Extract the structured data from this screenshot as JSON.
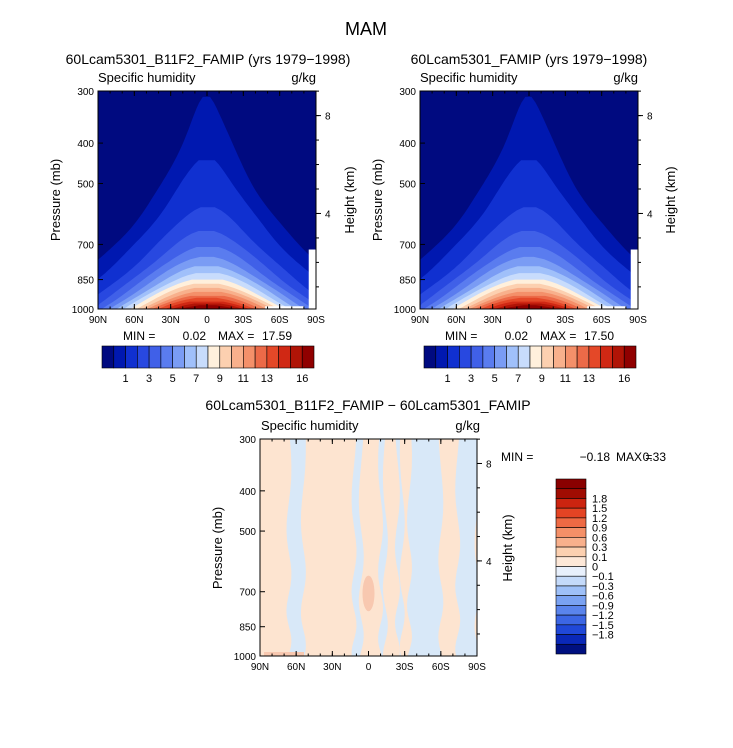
{
  "page_title": "MAM",
  "colors": {
    "abs_scale": [
      "#000a80",
      "#0018b0",
      "#1030d0",
      "#2848e0",
      "#4060e8",
      "#5a7cef",
      "#7a9cf4",
      "#a0c0fa",
      "#c8dcfc",
      "#fff0dc",
      "#fcd0b0",
      "#f8b08c",
      "#f4906a",
      "#ec6a48",
      "#e44828",
      "#d02814",
      "#b01406",
      "#900000"
    ],
    "diff_scale": [
      "#001080",
      "#0a28b8",
      "#2048d8",
      "#3c66e4",
      "#5a84ec",
      "#7aa2f2",
      "#9ec0f8",
      "#c4dafa",
      "#e8f0fc",
      "#fde8d8",
      "#fcd0b0",
      "#f8b08c",
      "#f49068",
      "#ee6a44",
      "#e44424",
      "#cc2410",
      "#a00c02",
      "#8a0000"
    ],
    "diff_pos": "#fde4d0",
    "diff_neg": "#d8e8f8",
    "diff_pos2": "#f8c8b0"
  },
  "chart_data": [
    {
      "type": "heatmap",
      "title": "60Lcam5301_B11F2_FAMIP (yrs 1979−1998)",
      "left_label": "Specific humidity",
      "right_label": "g/kg",
      "ylabel": "Pressure (mb)",
      "y2label": "Height (km)",
      "x_ticks": [
        "90N",
        "60N",
        "30N",
        "0",
        "30S",
        "60S",
        "90S"
      ],
      "x_values": [
        90,
        60,
        30,
        0,
        -30,
        -60,
        -90
      ],
      "y_ticks": [
        "300",
        "400",
        "500",
        "700",
        "850",
        "1000"
      ],
      "y_values": [
        300,
        400,
        500,
        700,
        850,
        1000
      ],
      "ylim": [
        300,
        1000
      ],
      "y2_ticks": [
        "8",
        "4"
      ],
      "y2_values": [
        8,
        4
      ],
      "min_label": "MIN =",
      "min_value": "0.02",
      "max_label": "MAX =",
      "max_value": "17.59",
      "colorbar_labels": [
        "1",
        "3",
        "5",
        "7",
        "9",
        "11",
        "13",
        "16"
      ],
      "levels": [
        0.5,
        1,
        2,
        3,
        4,
        5,
        6,
        7,
        8,
        9,
        10,
        11,
        12,
        13,
        14,
        15,
        16
      ],
      "peak": 17.59
    },
    {
      "type": "heatmap",
      "title": "60Lcam5301_FAMIP (yrs 1979−1998)",
      "left_label": "Specific humidity",
      "right_label": "g/kg",
      "ylabel": "Pressure (mb)",
      "y2label": "Height (km)",
      "x_ticks": [
        "90N",
        "60N",
        "30N",
        "0",
        "30S",
        "60S",
        "90S"
      ],
      "x_values": [
        90,
        60,
        30,
        0,
        -30,
        -60,
        -90
      ],
      "y_ticks": [
        "300",
        "400",
        "500",
        "700",
        "850",
        "1000"
      ],
      "y_values": [
        300,
        400,
        500,
        700,
        850,
        1000
      ],
      "ylim": [
        300,
        1000
      ],
      "y2_ticks": [
        "8",
        "4"
      ],
      "y2_values": [
        8,
        4
      ],
      "min_label": "MIN =",
      "min_value": "0.02",
      "max_label": "MAX =",
      "max_value": "17.50",
      "colorbar_labels": [
        "1",
        "3",
        "5",
        "7",
        "9",
        "11",
        "13",
        "16"
      ],
      "levels": [
        0.5,
        1,
        2,
        3,
        4,
        5,
        6,
        7,
        8,
        9,
        10,
        11,
        12,
        13,
        14,
        15,
        16
      ],
      "peak": 17.5
    },
    {
      "type": "heatmap",
      "title": "60Lcam5301_B11F2_FAMIP − 60Lcam5301_FAMIP",
      "left_label": "Specific humidity",
      "right_label": "g/kg",
      "ylabel": "Pressure (mb)",
      "y2label": "Height (km)",
      "x_ticks": [
        "90N",
        "60N",
        "30N",
        "0",
        "30S",
        "60S",
        "90S"
      ],
      "x_values": [
        90,
        60,
        30,
        0,
        -30,
        -60,
        -90
      ],
      "y_ticks": [
        "300",
        "400",
        "500",
        "700",
        "850",
        "1000"
      ],
      "y_values": [
        300,
        400,
        500,
        700,
        850,
        1000
      ],
      "ylim": [
        300,
        1000
      ],
      "y2_ticks": [
        "8",
        "4"
      ],
      "y2_values": [
        8,
        4
      ],
      "min_label": "MIN =",
      "min_value": "−0.18",
      "max_label": "MAX =",
      "max_value": "0.33",
      "colorbar_labels": [
        "1.8",
        "1.5",
        "1.2",
        "0.9",
        "0.6",
        "0.3",
        "0.1",
        "0",
        "−0.1",
        "−0.3",
        "−0.6",
        "−0.9",
        "−1.2",
        "−1.5",
        "−1.8"
      ],
      "negative_bands_lat": [
        [
          66,
          54
        ],
        [
          12,
          6
        ],
        [
          -10,
          -14
        ],
        [
          -24,
          -28
        ],
        [
          -34,
          -60
        ],
        [
          -74,
          -90
        ]
      ],
      "positive_core": {
        "lat": 0,
        "p_range": [
          640,
          780
        ]
      }
    }
  ]
}
